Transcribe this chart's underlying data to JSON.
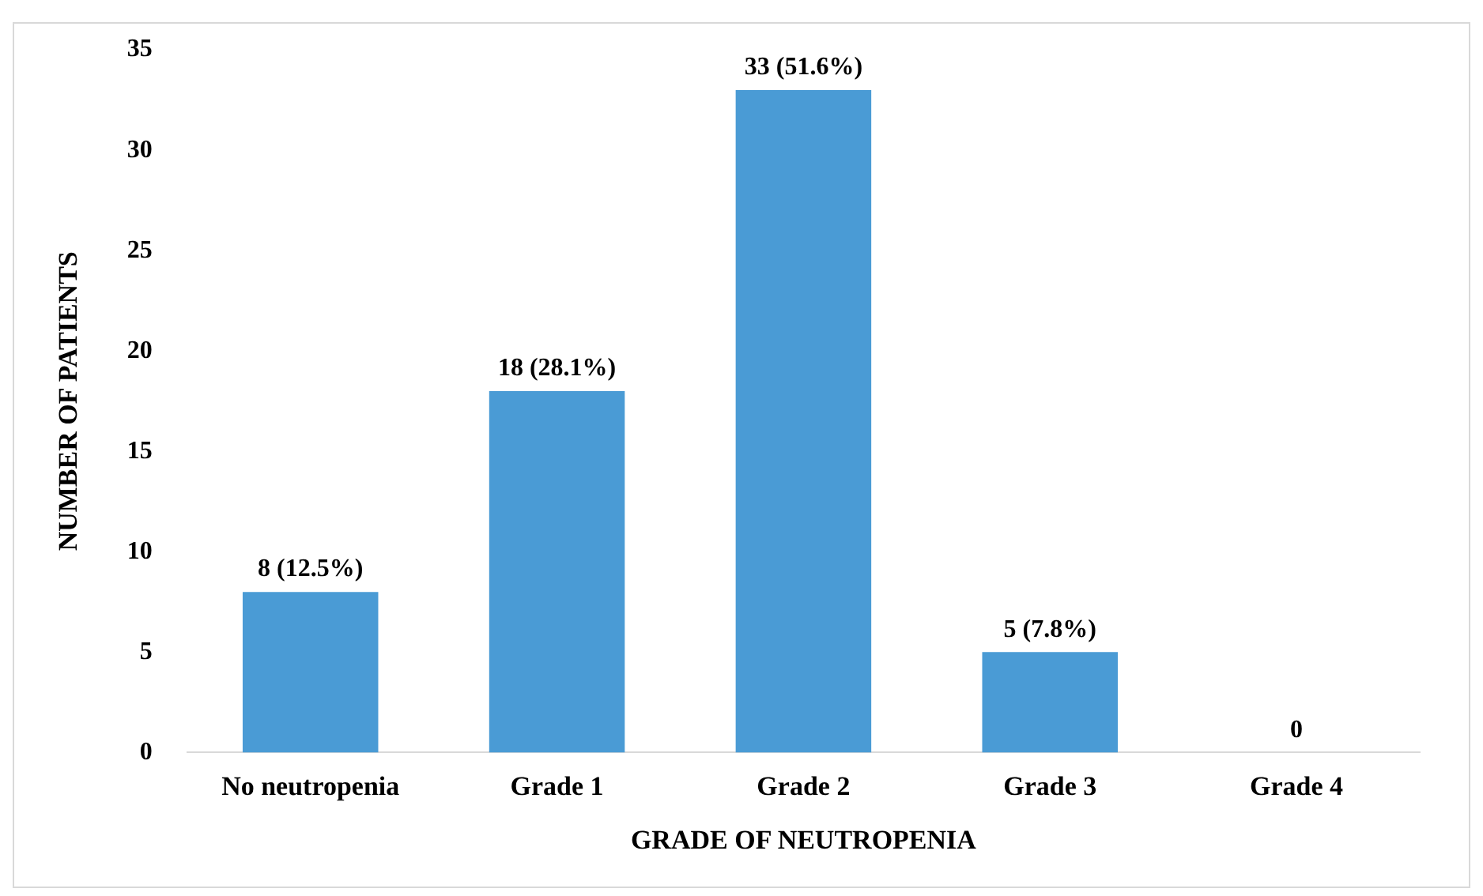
{
  "chart_data": {
    "type": "bar",
    "xlabel": "GRADE OF NEUTROPENIA",
    "ylabel": "NUMBER OF PATIENTS",
    "categories": [
      "No neutropenia",
      "Grade 1",
      "Grade 2",
      "Grade 3",
      "Grade 4"
    ],
    "values": [
      8,
      18,
      33,
      5,
      0
    ],
    "value_labels": [
      "8 (12.5%)",
      "18 (28.1%)",
      "33 (51.6%)",
      "5 (7.8%)",
      "0"
    ],
    "color": "#4a9bd5",
    "ylim": [
      0,
      35
    ],
    "yticks": [
      0,
      5,
      10,
      15,
      20,
      25,
      30,
      35
    ],
    "grid": false,
    "legend": false
  }
}
